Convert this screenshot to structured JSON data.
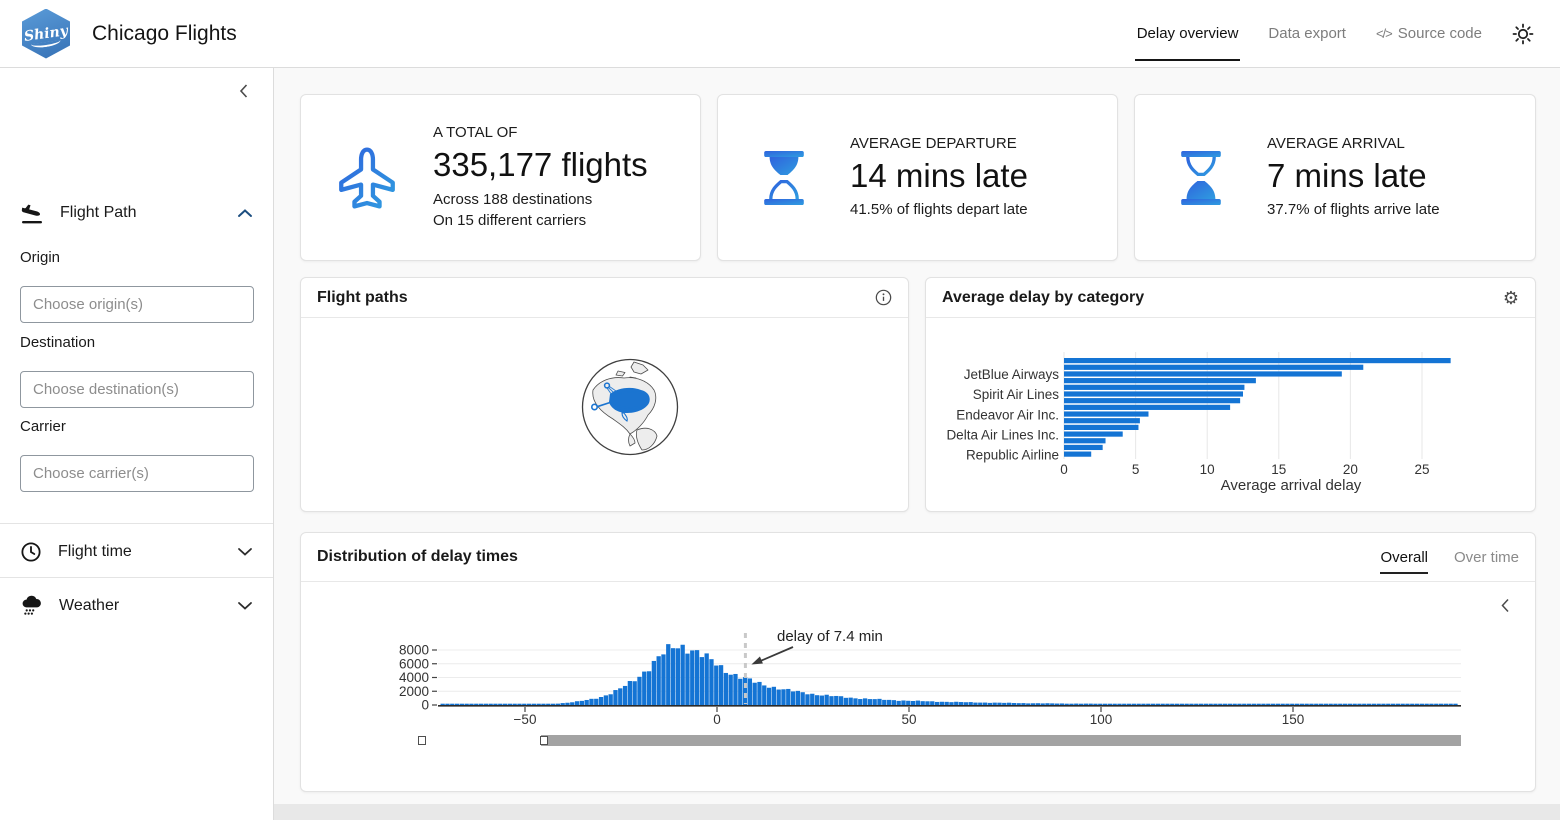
{
  "navbar": {
    "logo_text": "Shiny",
    "brand": "Chicago Flights",
    "items": [
      {
        "label": "Delay overview",
        "active": true
      },
      {
        "label": "Data export",
        "active": false
      },
      {
        "label": "Source code",
        "active": false,
        "icon_glyph": "</>"
      }
    ]
  },
  "sidebar": {
    "sections": [
      {
        "label": "Flight Path",
        "icon": "plane-arrival-icon",
        "expanded": true
      },
      {
        "label": "Flight time",
        "icon": "clock-icon",
        "expanded": false
      },
      {
        "label": "Weather",
        "icon": "cloud-rain-icon",
        "expanded": false
      }
    ],
    "fields": [
      {
        "label": "Origin",
        "placeholder": "Choose origin(s)",
        "value": ""
      },
      {
        "label": "Destination",
        "placeholder": "Choose destination(s)",
        "value": ""
      },
      {
        "label": "Carrier",
        "placeholder": "Choose carrier(s)",
        "value": ""
      }
    ]
  },
  "value_boxes": [
    {
      "icon": "plane-icon",
      "title": "A TOTAL OF",
      "value": "335,177 flights",
      "subtitle": [
        "Across 188 destinations",
        "On 15 different carriers"
      ]
    },
    {
      "icon": "hourglass-start-icon",
      "title": "AVERAGE DEPARTURE",
      "value": "14 mins late",
      "subtitle": [
        "41.5% of flights depart late"
      ]
    },
    {
      "icon": "hourglass-end-icon",
      "title": "AVERAGE ARRIVAL",
      "value": "7 mins late",
      "subtitle": [
        "37.7% of flights arrive late"
      ]
    }
  ],
  "cards": {
    "flight_paths": {
      "title": "Flight paths"
    },
    "delay_by_category": {
      "title": "Average delay by category"
    },
    "distribution": {
      "title": "Distribution of delay times",
      "tabs": [
        {
          "label": "Overall",
          "active": true
        },
        {
          "label": "Over time",
          "active": false
        }
      ]
    }
  },
  "colors": {
    "chart_blue": "#1474d4",
    "icon_gradient_start": "#2f63dd",
    "icon_gradient_end": "#2f9ce0",
    "grid_gray": "#e7e7e7"
  },
  "chart_data": [
    {
      "type": "bar",
      "title": "Average delay by category",
      "orientation": "horizontal",
      "xlabel": "Average arrival delay",
      "xticks": [
        0,
        5,
        10,
        15,
        20,
        25
      ],
      "xlim": [
        0,
        27.6
      ],
      "values": [
        27.0,
        20.9,
        19.4,
        13.4,
        12.6,
        12.5,
        12.3,
        11.6,
        5.9,
        5.3,
        5.2,
        4.1,
        2.9,
        2.7,
        1.9
      ],
      "visible_ytick_labels": [
        {
          "bar_index": 2,
          "label": "JetBlue Airways"
        },
        {
          "bar_index": 5,
          "label": "Spirit Air Lines"
        },
        {
          "bar_index": 8,
          "label": "Endeavor Air Inc."
        },
        {
          "bar_index": 11,
          "label": "Delta Air Lines Inc."
        },
        {
          "bar_index": 14,
          "label": "Republic Airline"
        }
      ],
      "bar_color": "#1474d4",
      "grid": true
    },
    {
      "type": "histogram",
      "title": "Distribution of delay times",
      "active_tab": "Overall",
      "xticks": [
        -50,
        0,
        50,
        100,
        150
      ],
      "yticks": [
        0,
        2000,
        4000,
        6000,
        8000
      ],
      "x_range": [
        -72,
        193
      ],
      "bin_width": 1.25,
      "bar_color": "#1474d4",
      "grid": true,
      "annotation": {
        "text": "delay of 7.4 min",
        "x": 7.4
      },
      "envelope": [
        [
          -72,
          30
        ],
        [
          -65,
          42
        ],
        [
          -60,
          50
        ],
        [
          -55,
          62
        ],
        [
          -50,
          90
        ],
        [
          -45,
          140
        ],
        [
          -42,
          200
        ],
        [
          -40,
          280
        ],
        [
          -38,
          380
        ],
        [
          -36,
          520
        ],
        [
          -34,
          700
        ],
        [
          -32,
          920
        ],
        [
          -30,
          1200
        ],
        [
          -28,
          1600
        ],
        [
          -26,
          2100
        ],
        [
          -24,
          2700
        ],
        [
          -22,
          3400
        ],
        [
          -20,
          4300
        ],
        [
          -18,
          5300
        ],
        [
          -16,
          6400
        ],
        [
          -14,
          7400
        ],
        [
          -12,
          8200
        ],
        [
          -10,
          8600
        ],
        [
          -8,
          8500
        ],
        [
          -6,
          8000
        ],
        [
          -4,
          7300
        ],
        [
          -2,
          6600
        ],
        [
          0,
          5900
        ],
        [
          2,
          5200
        ],
        [
          4,
          4600
        ],
        [
          6,
          4100
        ],
        [
          8,
          3700
        ],
        [
          10,
          3300
        ],
        [
          12,
          3000
        ],
        [
          14,
          2700
        ],
        [
          16,
          2450
        ],
        [
          18,
          2200
        ],
        [
          20,
          2000
        ],
        [
          25,
          1600
        ],
        [
          30,
          1300
        ],
        [
          35,
          1050
        ],
        [
          40,
          870
        ],
        [
          45,
          730
        ],
        [
          50,
          620
        ],
        [
          55,
          530
        ],
        [
          60,
          460
        ],
        [
          65,
          400
        ],
        [
          70,
          350
        ],
        [
          75,
          310
        ],
        [
          80,
          270
        ],
        [
          85,
          240
        ],
        [
          90,
          215
        ],
        [
          95,
          195
        ],
        [
          100,
          175
        ],
        [
          110,
          145
        ],
        [
          120,
          120
        ],
        [
          130,
          100
        ],
        [
          140,
          85
        ],
        [
          150,
          72
        ],
        [
          160,
          62
        ],
        [
          170,
          54
        ],
        [
          180,
          47
        ],
        [
          190,
          42
        ],
        [
          193,
          40
        ]
      ]
    }
  ]
}
